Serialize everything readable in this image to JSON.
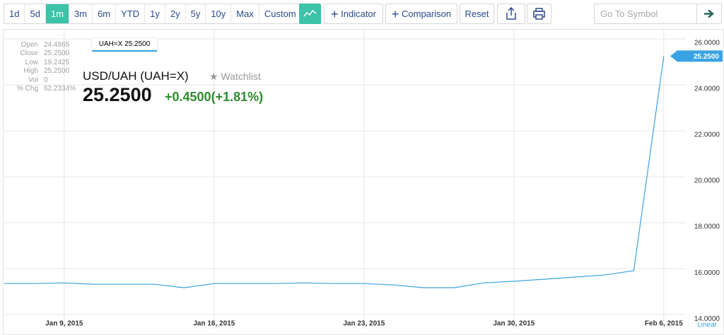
{
  "toolbar": {
    "ranges": [
      "1d",
      "5d",
      "1m",
      "3m",
      "6m",
      "YTD",
      "1y",
      "2y",
      "5y",
      "10y",
      "Max"
    ],
    "custom": "Custom",
    "indicator": "Indicator",
    "comparison": "Comparison",
    "reset": "Reset",
    "symbol_placeholder": "Go To Symbol"
  },
  "quote": {
    "title": "USD/UAH (UAH=X)",
    "watchlist": "Watchlist",
    "price": "25.2500",
    "change": "+0.4500",
    "change_pct": "(+1.81%)"
  },
  "info": [
    {
      "label": "Open",
      "value": "24.4865"
    },
    {
      "label": "Close",
      "value": "25.2500"
    },
    {
      "label": "Low",
      "value": "19.2425"
    },
    {
      "label": "High",
      "value": "25.2500"
    },
    {
      "label": "Vol",
      "value": "0"
    },
    {
      "label": "% Chg",
      "value": "62.2334%"
    }
  ],
  "scale_label": "Linear",
  "chart_data": {
    "type": "line",
    "categories": [
      null,
      null,
      "Jan 9, 2015",
      null,
      null,
      null,
      null,
      "Jan 16, 2015",
      null,
      null,
      null,
      null,
      "Jan 23, 2015",
      null,
      null,
      null,
      null,
      "Jan 30, 2015",
      null,
      null,
      null,
      null,
      "Feb 6, 2015"
    ],
    "series": [
      {
        "name": "UAH=X",
        "color": "#3aa3e3",
        "values": [
          15.35,
          15.35,
          15.38,
          15.32,
          15.32,
          15.32,
          15.17,
          15.35,
          15.35,
          15.35,
          15.38,
          15.35,
          15.35,
          15.29,
          15.17,
          15.17,
          15.38,
          15.45,
          15.54,
          15.63,
          15.72,
          15.91,
          25.25
        ],
        "value_labels": [
          null,
          null,
          null,
          null,
          null,
          null,
          null,
          null,
          null,
          null,
          null,
          null,
          null,
          null,
          null,
          null,
          null,
          null,
          null,
          null,
          null,
          null,
          "25.2500"
        ]
      }
    ],
    "ylim": [
      13.85,
      26.34
    ],
    "yticks": [
      {
        "value": 14,
        "label": "14.0000"
      },
      {
        "value": 16,
        "label": "16.0000"
      },
      {
        "value": 18,
        "label": "18.0000"
      },
      {
        "value": 20,
        "label": "20.0000"
      },
      {
        "value": 22,
        "label": "22.0000"
      },
      {
        "value": 24,
        "label": "24.0000"
      },
      {
        "value": 26,
        "label": "26.0000"
      }
    ],
    "grid": true
  }
}
